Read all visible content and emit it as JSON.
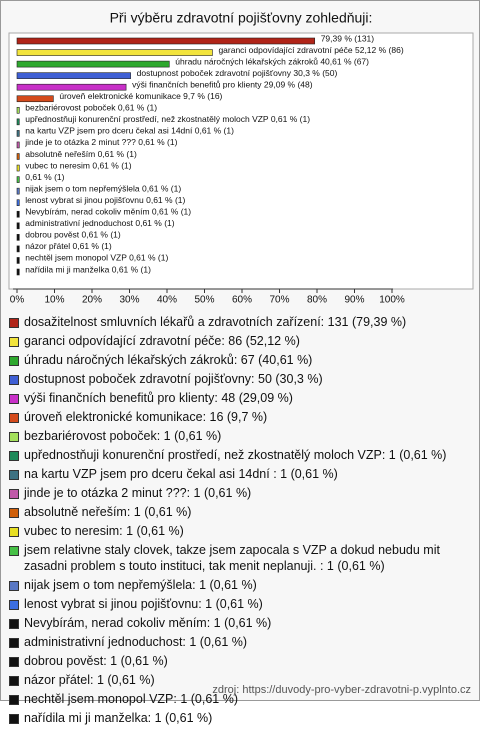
{
  "chart_data": {
    "type": "bar",
    "orientation": "horizontal",
    "title": "Při výběru zdravotní pojišťovny zohledňuji:",
    "values": [
      79.39,
      52.12,
      40.61,
      30.3,
      29.09,
      9.7,
      0.61,
      0.61,
      0.61,
      0.61,
      0.61,
      0.61,
      0.61,
      0.61,
      0.61,
      0.61,
      0.61,
      0.61,
      0.61,
      0.61,
      0.61
    ],
    "value_labels": [
      "79,39 % (131)",
      "garanci odpovídající zdravotní péče 52,12 % (86)",
      "úhradu náročných lékařských zákroků 40,61 % (67)",
      "dostupnost poboček zdravotní pojišťovny 30,3 % (50)",
      "výši finančních benefitů pro klienty 29,09 % (48)",
      "úroveň elektronické komunikace 9,7 % (16)",
      "bezbariérovost poboček 0,61 % (1)",
      "upřednostňuji konurenční prostředí, než zkostnatělý moloch VZP 0,61 % (1)",
      "na kartu VZP jsem pro dceru čekal asi 14dní  0,61 % (1)",
      "jinde je to otázka 2 minut ??? 0,61 % (1)",
      "absolutně neřeším 0,61 % (1)",
      "vubec to neresim 0,61 % (1)",
      "0,61 % (1)",
      "nijak jsem o tom nepřemýšlela 0,61 % (1)",
      "lenost vybrat si jinou pojišťovnu 0,61 % (1)",
      "Nevybírám, nerad cokoliv měním 0,61 % (1)",
      "administrativní jednoduchost 0,61 % (1)",
      "dobrou pověst 0,61 % (1)",
      "názor přátel 0,61 % (1)",
      "nechtěl jsem monopol VZP 0,61 % (1)",
      "nařídila mi ji manželka 0,61 % (1)"
    ],
    "legend": [
      "dosažitelnost smluvních lékařů a zdravotních zařízení: 131 (79,39 %)",
      "garanci odpovídající zdravotní péče: 86 (52,12 %)",
      "úhradu náročných lékařských zákroků: 67 (40,61 %)",
      "dostupnost poboček zdravotní pojišťovny: 50 (30,3 %)",
      "výši finančních benefitů pro klienty: 48 (29,09 %)",
      "úroveň elektronické komunikace: 16 (9,7 %)",
      "bezbariérovost poboček: 1 (0,61 %)",
      "upřednostňuji konurenční prostředí, než zkostnatělý moloch VZP: 1 (0,61 %)",
      "na kartu VZP jsem pro dceru čekal asi 14dní : 1 (0,61 %)",
      "jinde je to otázka 2 minut ???: 1 (0,61 %)",
      "absolutně neřeším: 1 (0,61 %)",
      "vubec to neresim: 1 (0,61 %)",
      "jsem relativne staly clovek, takze jsem zapocala s VZP a dokud nebudu mit zasadni problem s touto instituci, tak menit neplanuji. : 1 (0,61 %)",
      "nijak jsem o tom nepřemýšlela: 1 (0,61 %)",
      "lenost vybrat si jinou pojišťovnu: 1 (0,61 %)",
      "Nevybírám, nerad cokoliv měním: 1 (0,61 %)",
      "administrativní jednoduchost: 1 (0,61 %)",
      "dobrou pověst: 1 (0,61 %)",
      "názor přátel: 1 (0,61 %)",
      "nechtěl jsem monopol VZP: 1 (0,61 %)",
      "nařídila mi ji manželka: 1 (0,61 %)"
    ],
    "colors": [
      "#b02418",
      "#f2e43c",
      "#2ea82e",
      "#3f5fd4",
      "#c830c8",
      "#d44a1c",
      "#a4e05c",
      "#1e8a5a",
      "#3e7282",
      "#c05aa8",
      "#cf5f0a",
      "#e8e024",
      "#46c046",
      "#5a78c4",
      "#3c6ee0",
      "#111111",
      "#111111",
      "#111111",
      "#111111",
      "#111111",
      "#111111"
    ],
    "xlim": [
      0,
      100
    ],
    "xticks": [
      {
        "value": 0,
        "label": "0%"
      },
      {
        "value": 10,
        "label": "10%"
      },
      {
        "value": 20,
        "label": "20%"
      },
      {
        "value": 30,
        "label": "30%"
      },
      {
        "value": 40,
        "label": "40%"
      },
      {
        "value": 50,
        "label": "50%"
      },
      {
        "value": 60,
        "label": "60%"
      },
      {
        "value": 70,
        "label": "70%"
      },
      {
        "value": 80,
        "label": "80%"
      },
      {
        "value": 90,
        "label": "90%"
      },
      {
        "value": 100,
        "label": "100%"
      }
    ],
    "source": "zdroj: https://duvody-pro-vyber-zdravotni-p.vyplnto.cz"
  }
}
